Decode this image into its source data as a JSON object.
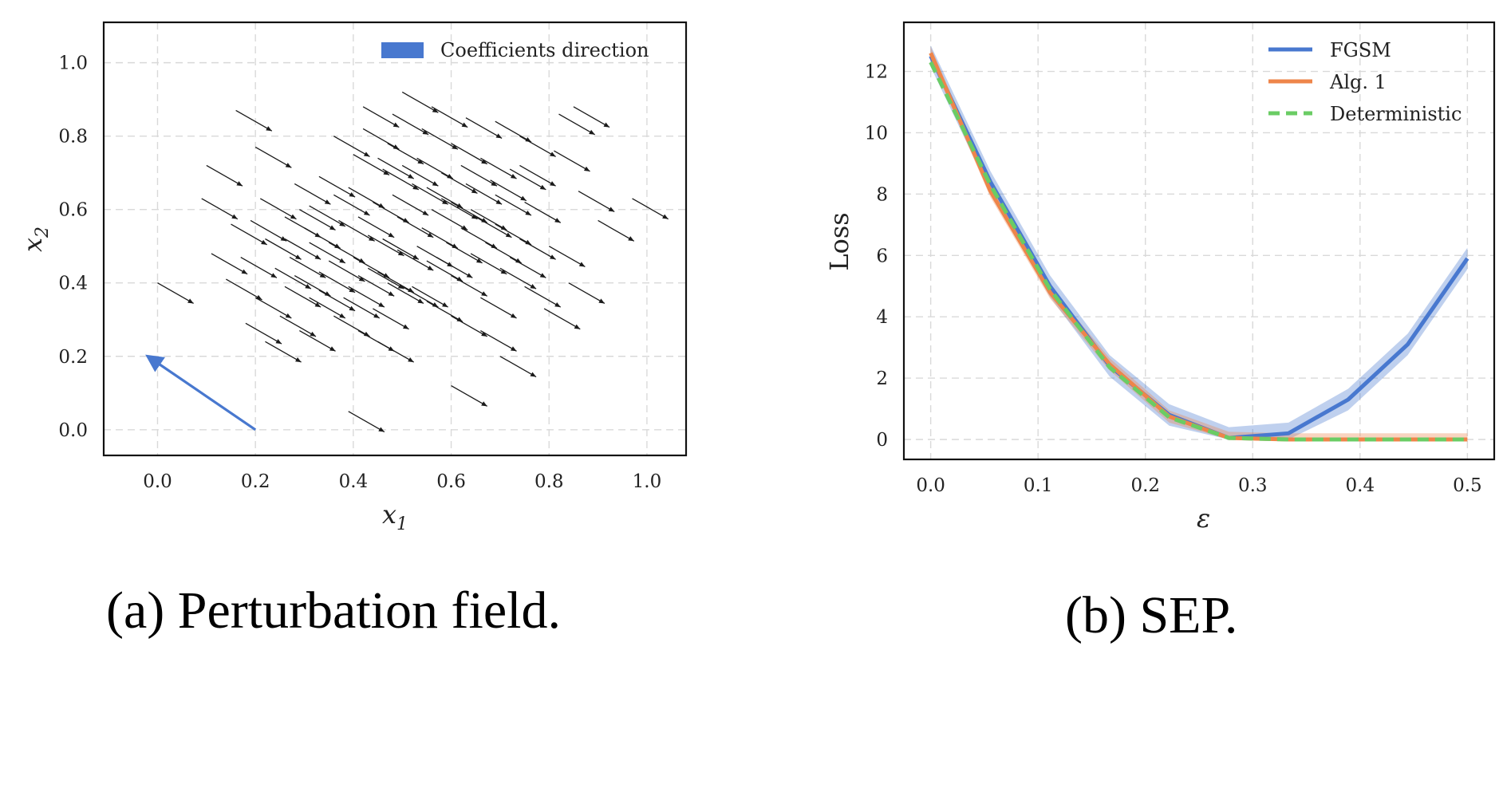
{
  "colors": {
    "blue": "#4878cf",
    "orange": "#ee854a",
    "green": "#6acc64",
    "arrow": "#1a1a1a"
  },
  "chart_data": [
    {
      "type": "quiver",
      "caption": "(a) Perturbation field.",
      "xlabel": "x",
      "xlabel_sub": "1",
      "ylabel": "x",
      "ylabel_sub": "2",
      "xlim": [
        -0.11,
        1.08
      ],
      "ylim": [
        -0.07,
        1.11
      ],
      "xticks": [
        0.0,
        0.2,
        0.4,
        0.6,
        0.8,
        1.0
      ],
      "yticks": [
        0.0,
        0.2,
        0.4,
        0.6,
        0.8,
        1.0
      ],
      "tick_labels_x": [
        "0.0",
        "0.2",
        "0.4",
        "0.6",
        "0.8",
        "1.0"
      ],
      "tick_labels_y": [
        "0.0",
        "0.2",
        "0.4",
        "0.6",
        "0.8",
        "1.0"
      ],
      "grid": true,
      "legend_position": "top-right",
      "legend": [
        "Coefficients direction"
      ],
      "coefficient_arrow": {
        "tail": [
          0.2,
          0.0
        ],
        "head": [
          -0.02,
          0.2
        ]
      },
      "field_direction": [
        0.71,
        -0.54
      ],
      "arrows": [
        [
          0.16,
          0.87
        ],
        [
          0.2,
          0.77
        ],
        [
          0.1,
          0.72
        ],
        [
          0.09,
          0.63
        ],
        [
          0.15,
          0.56
        ],
        [
          0.0,
          0.4
        ],
        [
          0.11,
          0.48
        ],
        [
          0.17,
          0.47
        ],
        [
          0.14,
          0.41
        ],
        [
          0.2,
          0.36
        ],
        [
          0.18,
          0.29
        ],
        [
          0.22,
          0.24
        ],
        [
          0.25,
          0.31
        ],
        [
          0.29,
          0.27
        ],
        [
          0.26,
          0.39
        ],
        [
          0.31,
          0.36
        ],
        [
          0.36,
          0.31
        ],
        [
          0.41,
          0.27
        ],
        [
          0.45,
          0.24
        ],
        [
          0.44,
          0.33
        ],
        [
          0.39,
          0.39
        ],
        [
          0.33,
          0.43
        ],
        [
          0.27,
          0.47
        ],
        [
          0.22,
          0.52
        ],
        [
          0.26,
          0.58
        ],
        [
          0.3,
          0.55
        ],
        [
          0.35,
          0.51
        ],
        [
          0.4,
          0.47
        ],
        [
          0.45,
          0.43
        ],
        [
          0.5,
          0.39
        ],
        [
          0.55,
          0.35
        ],
        [
          0.6,
          0.31
        ],
        [
          0.66,
          0.27
        ],
        [
          0.7,
          0.2
        ],
        [
          0.66,
          0.36
        ],
        [
          0.6,
          0.42
        ],
        [
          0.55,
          0.46
        ],
        [
          0.49,
          0.49
        ],
        [
          0.43,
          0.53
        ],
        [
          0.37,
          0.57
        ],
        [
          0.31,
          0.61
        ],
        [
          0.28,
          0.67
        ],
        [
          0.33,
          0.69
        ],
        [
          0.39,
          0.66
        ],
        [
          0.44,
          0.62
        ],
        [
          0.49,
          0.58
        ],
        [
          0.54,
          0.55
        ],
        [
          0.59,
          0.51
        ],
        [
          0.64,
          0.48
        ],
        [
          0.7,
          0.44
        ],
        [
          0.75,
          0.39
        ],
        [
          0.79,
          0.33
        ],
        [
          0.84,
          0.4
        ],
        [
          0.8,
          0.5
        ],
        [
          0.74,
          0.52
        ],
        [
          0.69,
          0.56
        ],
        [
          0.64,
          0.6
        ],
        [
          0.58,
          0.63
        ],
        [
          0.52,
          0.67
        ],
        [
          0.46,
          0.71
        ],
        [
          0.4,
          0.75
        ],
        [
          0.36,
          0.8
        ],
        [
          0.42,
          0.82
        ],
        [
          0.47,
          0.78
        ],
        [
          0.53,
          0.74
        ],
        [
          0.58,
          0.7
        ],
        [
          0.63,
          0.67
        ],
        [
          0.69,
          0.64
        ],
        [
          0.75,
          0.62
        ],
        [
          0.72,
          0.71
        ],
        [
          0.66,
          0.74
        ],
        [
          0.6,
          0.78
        ],
        [
          0.54,
          0.82
        ],
        [
          0.48,
          0.86
        ],
        [
          0.5,
          0.92
        ],
        [
          0.56,
          0.88
        ],
        [
          0.63,
          0.85
        ],
        [
          0.69,
          0.84
        ],
        [
          0.74,
          0.8
        ],
        [
          0.81,
          0.76
        ],
        [
          0.85,
          0.88
        ],
        [
          0.9,
          0.57
        ],
        [
          0.97,
          0.63
        ],
        [
          0.86,
          0.65
        ],
        [
          0.52,
          0.39
        ],
        [
          0.46,
          0.52
        ],
        [
          0.41,
          0.58
        ],
        [
          0.36,
          0.64
        ],
        [
          0.31,
          0.51
        ],
        [
          0.24,
          0.44
        ],
        [
          0.21,
          0.63
        ],
        [
          0.48,
          0.64
        ],
        [
          0.43,
          0.44
        ],
        [
          0.38,
          0.36
        ],
        [
          0.56,
          0.6
        ],
        [
          0.62,
          0.55
        ],
        [
          0.67,
          0.51
        ],
        [
          0.72,
          0.47
        ],
        [
          0.33,
          0.38
        ],
        [
          0.28,
          0.42
        ],
        [
          0.5,
          0.72
        ],
        [
          0.45,
          0.74
        ],
        [
          0.62,
          0.72
        ],
        [
          0.68,
          0.68
        ],
        [
          0.39,
          0.05
        ],
        [
          0.6,
          0.12
        ],
        [
          0.42,
          0.88
        ],
        [
          0.82,
          0.86
        ],
        [
          0.57,
          0.47
        ],
        [
          0.35,
          0.46
        ],
        [
          0.29,
          0.6
        ],
        [
          0.53,
          0.5
        ],
        [
          0.47,
          0.4
        ],
        [
          0.41,
          0.42
        ],
        [
          0.26,
          0.52
        ],
        [
          0.55,
          0.66
        ],
        [
          0.6,
          0.62
        ],
        [
          0.65,
          0.58
        ],
        [
          0.74,
          0.72
        ],
        [
          0.19,
          0.57
        ]
      ]
    },
    {
      "type": "line",
      "caption": "(b) SEP.",
      "xlabel": "ε",
      "ylabel": "Loss",
      "xlim": [
        -0.025,
        0.525
      ],
      "ylim": [
        -0.65,
        13.6
      ],
      "xticks": [
        0.0,
        0.1,
        0.2,
        0.3,
        0.4,
        0.5
      ],
      "yticks": [
        0,
        2,
        4,
        6,
        8,
        10,
        12
      ],
      "tick_labels_x": [
        "0.0",
        "0.1",
        "0.2",
        "0.3",
        "0.4",
        "0.5"
      ],
      "tick_labels_y": [
        "0",
        "2",
        "4",
        "6",
        "8",
        "10",
        "12"
      ],
      "grid": true,
      "legend_position": "top-right",
      "x": [
        0.0,
        0.0556,
        0.1111,
        0.1667,
        0.2222,
        0.2778,
        0.3333,
        0.3889,
        0.4444,
        0.5
      ],
      "series": [
        {
          "name": "FGSM",
          "style": "solid",
          "color": "#4878cf",
          "values": [
            12.5,
            8.4,
            5.0,
            2.4,
            0.8,
            0.05,
            0.2,
            1.3,
            3.1,
            5.9
          ],
          "band": 0.35
        },
        {
          "name": "Alg. 1",
          "style": "solid",
          "color": "#ee854a",
          "values": [
            12.6,
            8.1,
            4.8,
            2.45,
            0.75,
            0.05,
            0.0,
            0.0,
            0.0,
            0.0
          ],
          "band": 0.2
        },
        {
          "name": "Deterministic",
          "style": "dashed",
          "color": "#6acc64",
          "values": [
            12.3,
            8.3,
            4.9,
            2.35,
            0.72,
            0.05,
            0.0,
            0.0,
            0.0,
            0.0
          ],
          "band": 0.0
        }
      ]
    }
  ]
}
